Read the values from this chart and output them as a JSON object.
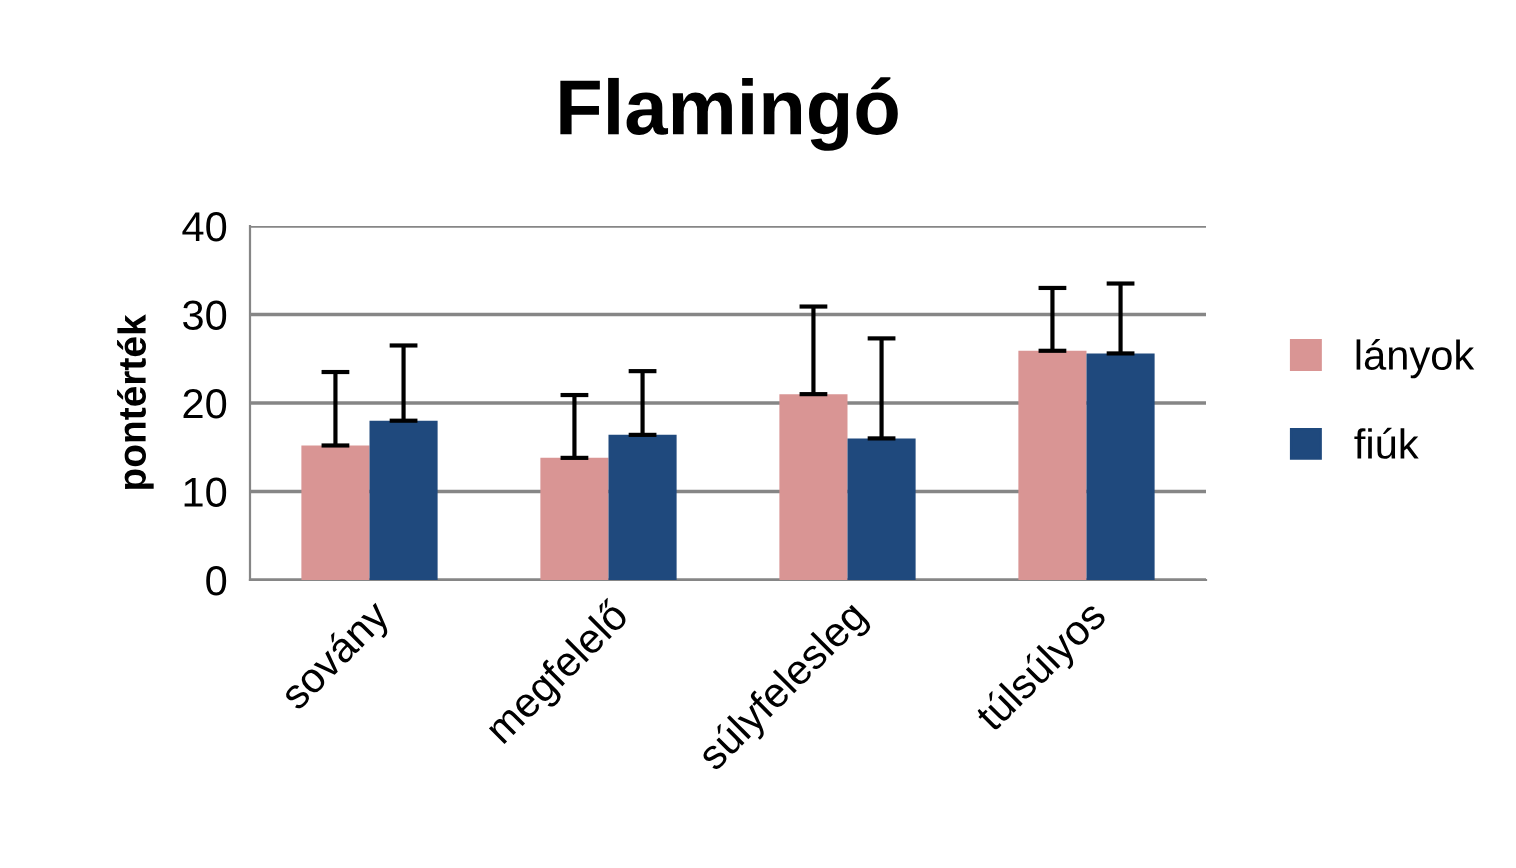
{
  "chart_data": {
    "type": "bar",
    "title": "Flamingó",
    "ylabel": "pontérték",
    "categories": [
      "sovány",
      "megfelelő",
      "súlyfelesleg",
      "túlsúlyos"
    ],
    "series": [
      {
        "name": "lányok",
        "color": "#d99594",
        "values": [
          15.2,
          13.8,
          21.0,
          25.9
        ],
        "errors": [
          [
            15.2,
            23.5
          ],
          [
            13.8,
            20.9
          ],
          [
            21.0,
            30.9
          ],
          [
            25.9,
            33.0
          ]
        ]
      },
      {
        "name": "fiúk",
        "color": "#1f497d",
        "values": [
          18.0,
          16.4,
          16.0,
          25.6
        ],
        "errors": [
          [
            18.0,
            26.5
          ],
          [
            16.4,
            23.6
          ],
          [
            16.0,
            27.3
          ],
          [
            25.6,
            33.5
          ]
        ]
      }
    ],
    "ylim": [
      0,
      40
    ],
    "yticks": [
      0,
      10,
      20,
      30,
      40
    ],
    "grid": "y",
    "legend": "right"
  }
}
